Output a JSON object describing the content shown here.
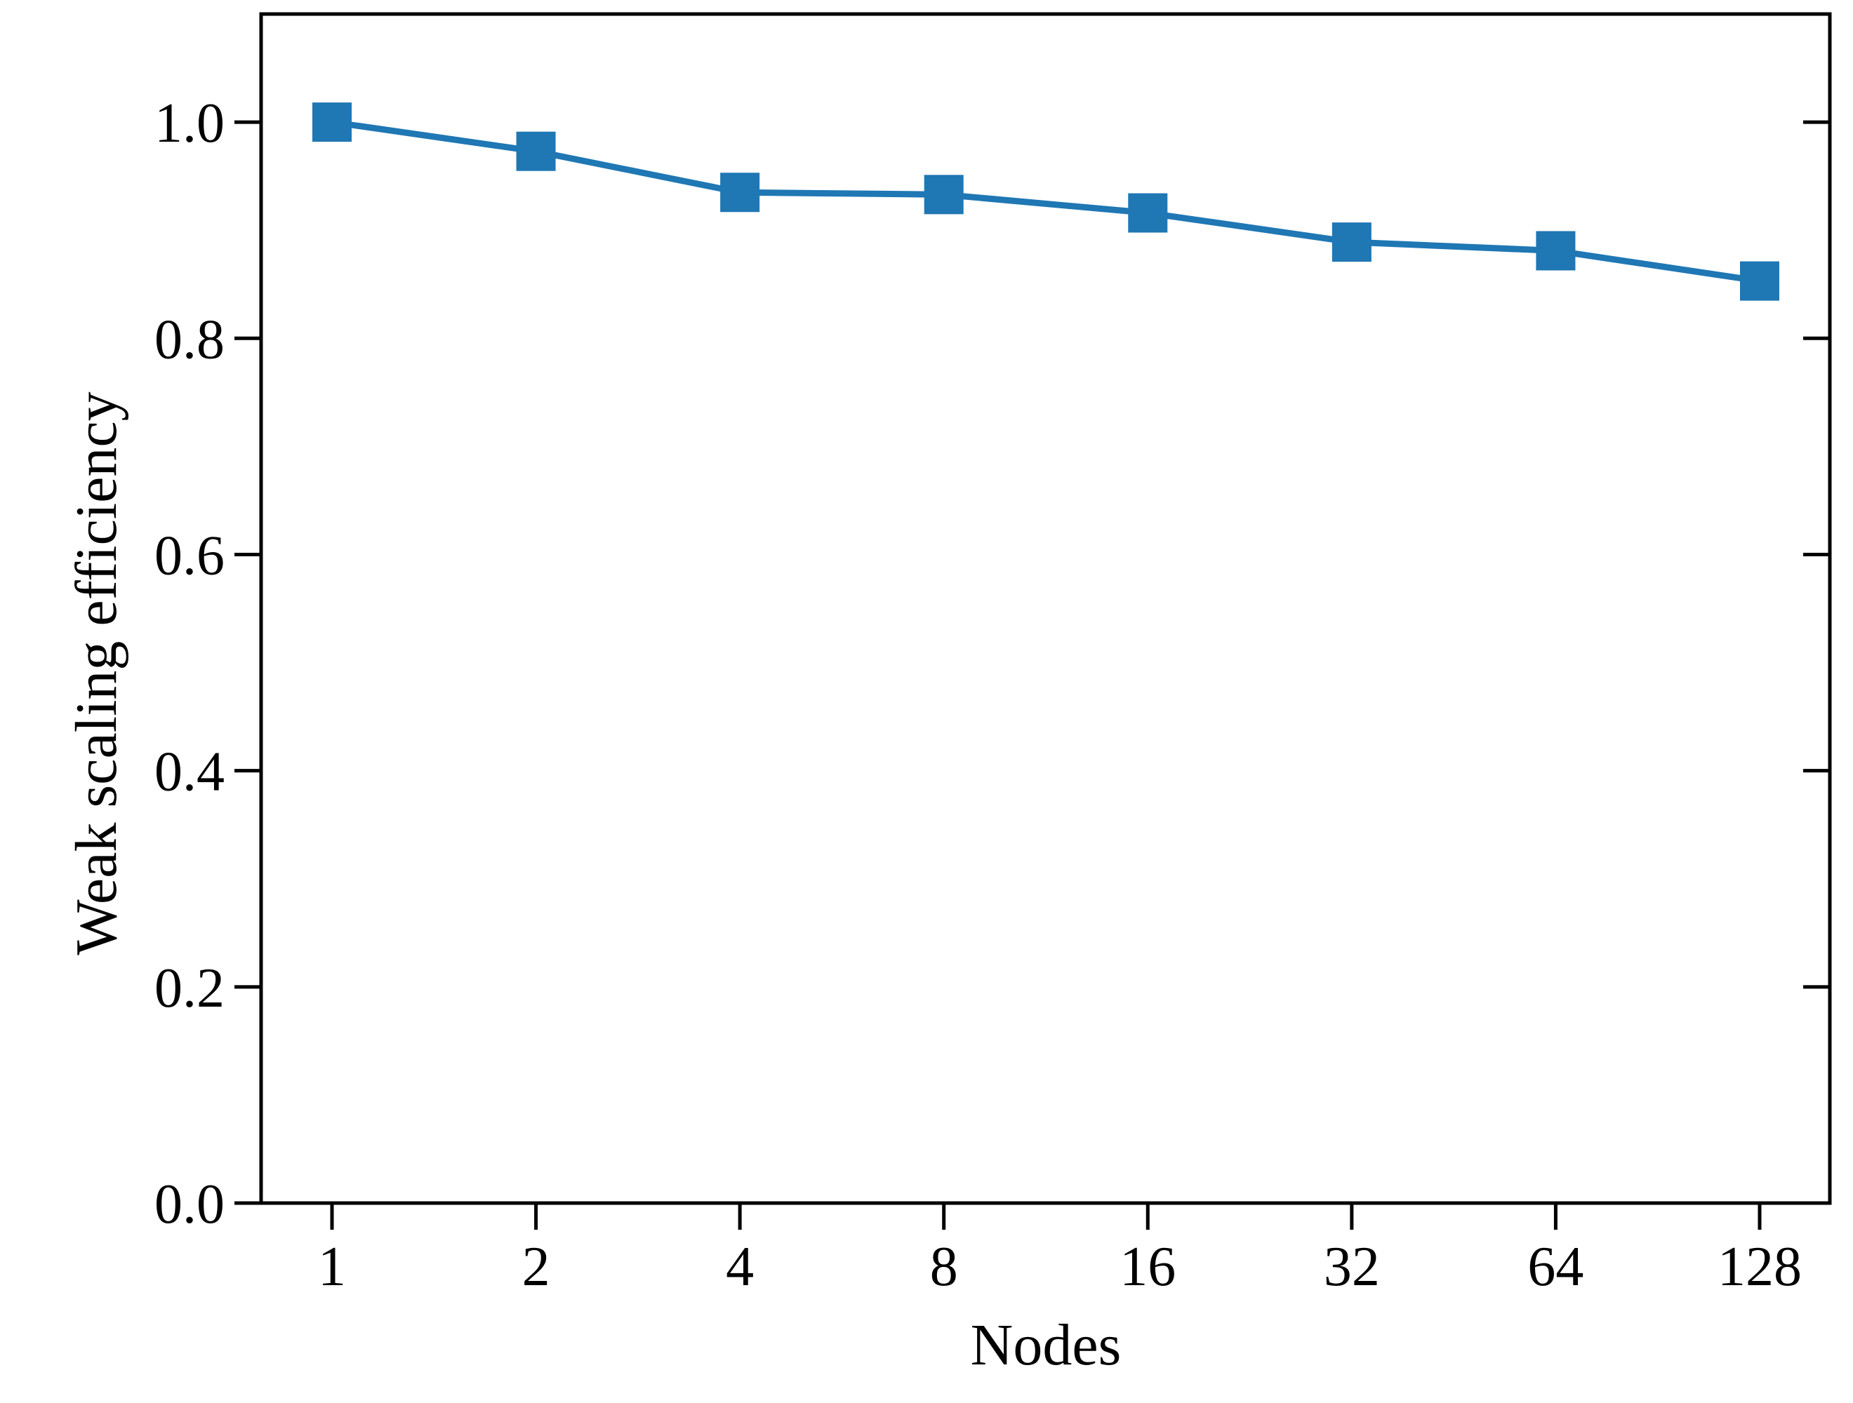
{
  "chart_data": {
    "type": "line",
    "xlabel": "Nodes",
    "ylabel": "Weak scaling efficiency",
    "x_scale": "log2",
    "categories": [
      "1",
      "2",
      "4",
      "8",
      "16",
      "32",
      "64",
      "128"
    ],
    "x": [
      1,
      2,
      4,
      8,
      16,
      32,
      64,
      128
    ],
    "series": [
      {
        "values": [
          1.0,
          0.973,
          0.935,
          0.933,
          0.916,
          0.889,
          0.881,
          0.853
        ],
        "color": "#1f77b4",
        "marker": "square"
      }
    ],
    "ylim": [
      0.0,
      1.1
    ],
    "yticks": [
      "0.0",
      "0.2",
      "0.4",
      "0.6",
      "0.8",
      "1.0"
    ],
    "ytick_values": [
      0.0,
      0.2,
      0.4,
      0.6,
      0.8,
      1.0
    ],
    "grid": false
  }
}
